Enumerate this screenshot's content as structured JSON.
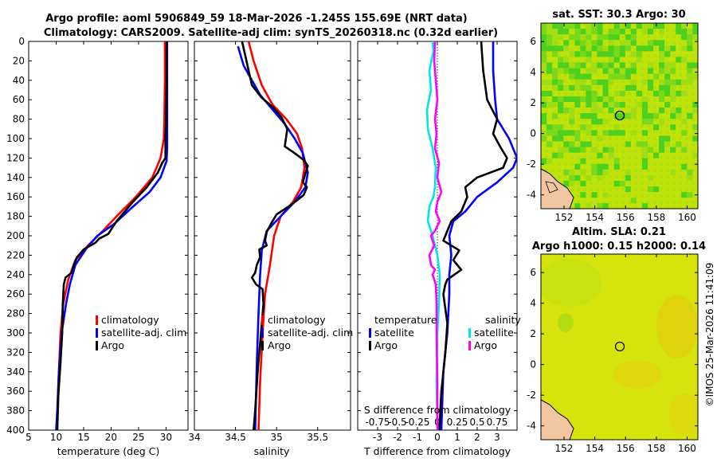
{
  "title": {
    "line1": "Argo profile: aoml 5906849_59 18-Mar-2026 -1.245S 155.69E (NRT data)",
    "line2": "Climatology: CARS2009. Satellite-adj clim: synTS_20260318.nc (0.32d earlier)"
  },
  "watermark": "©IMOS 25-Mar-2026 11:41:09",
  "depth_ticks": [
    "0",
    "20",
    "40",
    "60",
    "80",
    "100",
    "120",
    "140",
    "160",
    "180",
    "200",
    "220",
    "240",
    "260",
    "280",
    "300",
    "320",
    "340",
    "360",
    "380",
    "400"
  ],
  "colors": {
    "climatology": "#ff0000",
    "satellite": "#0000ff",
    "argo": "#000000",
    "s_sat": "#00e6e6",
    "s_argo": "#ff00ff"
  },
  "chart_data": [
    {
      "type": "line",
      "name": "temperature-profile",
      "xlabel": "temperature (deg C)",
      "ylabel": "depth",
      "xlim": [
        5,
        34
      ],
      "ylim": [
        400,
        0
      ],
      "xticks": [
        "5",
        "10",
        "15",
        "20",
        "25",
        "30"
      ],
      "legend": [
        "climatology",
        "satellite-adj. clim",
        "Argo"
      ],
      "series": [
        {
          "name": "climatology",
          "color": "#ff0000",
          "points": [
            [
              29.8,
              0
            ],
            [
              29.8,
              40
            ],
            [
              29.7,
              80
            ],
            [
              29.6,
              100
            ],
            [
              29.0,
              120
            ],
            [
              27.5,
              140
            ],
            [
              24.5,
              160
            ],
            [
              21.0,
              180
            ],
            [
              18.5,
              195
            ],
            [
              15.8,
              210
            ],
            [
              13.5,
              225
            ],
            [
              12.2,
              245
            ],
            [
              11.3,
              270
            ],
            [
              10.8,
              300
            ],
            [
              10.5,
              340
            ],
            [
              10.3,
              370
            ],
            [
              10.1,
              400
            ]
          ]
        },
        {
          "name": "satellite-adj. clim",
          "color": "#0000ff",
          "points": [
            [
              30.2,
              0
            ],
            [
              30.2,
              40
            ],
            [
              30.2,
              80
            ],
            [
              30.2,
              110
            ],
            [
              30.1,
              123
            ],
            [
              29.0,
              140
            ],
            [
              27.0,
              155
            ],
            [
              24.0,
              170
            ],
            [
              20.5,
              188
            ],
            [
              17.5,
              200
            ],
            [
              15.5,
              213
            ],
            [
              13.5,
              230
            ],
            [
              12.5,
              250
            ],
            [
              11.8,
              270
            ],
            [
              11.0,
              300
            ],
            [
              10.5,
              340
            ],
            [
              10.2,
              380
            ],
            [
              10.0,
              400
            ]
          ]
        },
        {
          "name": "Argo",
          "color": "#000000",
          "points": [
            [
              30.1,
              0
            ],
            [
              30.1,
              40
            ],
            [
              30.0,
              80
            ],
            [
              29.9,
              100
            ],
            [
              29.9,
              120
            ],
            [
              29.3,
              125
            ],
            [
              28.5,
              135
            ],
            [
              26.5,
              150
            ],
            [
              24.0,
              165
            ],
            [
              21.0,
              185
            ],
            [
              19.5,
              198
            ],
            [
              17.8,
              203
            ],
            [
              17.2,
              207
            ],
            [
              15.0,
              214
            ],
            [
              13.8,
              222
            ],
            [
              13.2,
              230
            ],
            [
              12.8,
              238
            ],
            [
              11.7,
              243
            ],
            [
              11.4,
              250
            ],
            [
              11.2,
              270
            ],
            [
              11.1,
              300
            ],
            [
              10.8,
              330
            ],
            [
              10.4,
              365
            ],
            [
              10.2,
              400
            ]
          ]
        }
      ]
    },
    {
      "type": "line",
      "name": "salinity-profile",
      "xlabel": "salinity",
      "ylabel": "depth",
      "xlim": [
        34,
        35.9
      ],
      "ylim": [
        400,
        0
      ],
      "xticks": [
        "34",
        "34.5",
        "35",
        "35.5"
      ],
      "legend": [
        "climatology",
        "satellite-adj. clim",
        "Argo"
      ],
      "series": [
        {
          "name": "climatology",
          "color": "#ff0000",
          "points": [
            [
              34.66,
              0
            ],
            [
              34.72,
              20
            ],
            [
              34.82,
              45
            ],
            [
              34.95,
              65
            ],
            [
              35.12,
              80
            ],
            [
              35.25,
              95
            ],
            [
              35.31,
              110
            ],
            [
              35.34,
              130
            ],
            [
              35.3,
              150
            ],
            [
              35.2,
              165
            ],
            [
              35.05,
              180
            ],
            [
              34.97,
              200
            ],
            [
              34.92,
              230
            ],
            [
              34.86,
              260
            ],
            [
              34.83,
              300
            ],
            [
              34.8,
              350
            ],
            [
              34.78,
              400
            ]
          ]
        },
        {
          "name": "satellite-adj. clim",
          "color": "#0000ff",
          "points": [
            [
              34.53,
              5
            ],
            [
              34.6,
              25
            ],
            [
              34.7,
              40
            ],
            [
              34.8,
              55
            ],
            [
              34.95,
              70
            ],
            [
              35.1,
              85
            ],
            [
              35.22,
              100
            ],
            [
              35.32,
              115
            ],
            [
              35.38,
              135
            ],
            [
              35.35,
              150
            ],
            [
              35.22,
              165
            ],
            [
              35.05,
              180
            ],
            [
              34.88,
              195
            ],
            [
              34.82,
              215
            ],
            [
              34.8,
              240
            ],
            [
              34.78,
              280
            ],
            [
              34.76,
              330
            ],
            [
              34.74,
              400
            ]
          ]
        },
        {
          "name": "Argo",
          "color": "#000000",
          "points": [
            [
              34.58,
              0
            ],
            [
              34.62,
              15
            ],
            [
              34.66,
              30
            ],
            [
              34.7,
              45
            ],
            [
              34.82,
              58
            ],
            [
              34.96,
              68
            ],
            [
              35.06,
              78
            ],
            [
              35.13,
              90
            ],
            [
              35.1,
              108
            ],
            [
              35.22,
              115
            ],
            [
              35.33,
              122
            ],
            [
              35.38,
              128
            ],
            [
              35.35,
              136
            ],
            [
              35.32,
              145
            ],
            [
              35.37,
              150
            ],
            [
              35.33,
              158
            ],
            [
              35.18,
              168
            ],
            [
              35.0,
              178
            ],
            [
              34.93,
              188
            ],
            [
              34.88,
              196
            ],
            [
              34.86,
              205
            ],
            [
              34.88,
              210
            ],
            [
              34.79,
              214
            ],
            [
              34.8,
              222
            ],
            [
              34.76,
              230
            ],
            [
              34.74,
              238
            ],
            [
              34.7,
              243
            ],
            [
              34.75,
              250
            ],
            [
              34.83,
              255
            ],
            [
              34.84,
              270
            ],
            [
              34.81,
              300
            ],
            [
              34.77,
              340
            ],
            [
              34.74,
              380
            ],
            [
              34.72,
              400
            ]
          ]
        }
      ]
    },
    {
      "type": "line",
      "name": "difference-profile",
      "xlabel": "T difference from climatology",
      "xlabel_top": "S difference from climatology",
      "xlim": [
        -4,
        4
      ],
      "ylim": [
        400,
        0
      ],
      "xticks": [
        "-3",
        "-2",
        "-1",
        "0",
        "1",
        "2",
        "3"
      ],
      "sticks": [
        "-0.75",
        "-0.5",
        "-0.25",
        "0",
        "0.25",
        "0.5",
        "0.75"
      ],
      "s_scale": 4,
      "legend_t_title": "temperature",
      "legend_s_title": "salinity",
      "legend_t": [
        "satellite",
        "Argo"
      ],
      "legend_s": [
        "satellite",
        "Argo"
      ],
      "series": [
        {
          "name": "T satellite - clim",
          "color": "#0000ff",
          "points": [
            [
              2.8,
              0
            ],
            [
              2.8,
              30
            ],
            [
              2.9,
              60
            ],
            [
              3.0,
              80
            ],
            [
              3.6,
              100
            ],
            [
              4.0,
              120
            ],
            [
              3.8,
              130
            ],
            [
              3.0,
              145
            ],
            [
              2.0,
              160
            ],
            [
              1.4,
              175
            ],
            [
              0.8,
              185
            ],
            [
              0.6,
              200
            ],
            [
              0.7,
              220
            ],
            [
              0.6,
              240
            ],
            [
              0.6,
              260
            ],
            [
              0.5,
              300
            ],
            [
              0.3,
              340
            ],
            [
              0.2,
              400
            ]
          ]
        },
        {
          "name": "T Argo - clim",
          "color": "#000000",
          "points": [
            [
              2.2,
              0
            ],
            [
              2.3,
              30
            ],
            [
              2.5,
              60
            ],
            [
              3.0,
              80
            ],
            [
              2.8,
              95
            ],
            [
              3.2,
              110
            ],
            [
              3.5,
              120
            ],
            [
              3.3,
              130
            ],
            [
              2.0,
              140
            ],
            [
              1.4,
              150
            ],
            [
              1.5,
              160
            ],
            [
              1.2,
              175
            ],
            [
              0.7,
              185
            ],
            [
              0.5,
              195
            ],
            [
              0.3,
              205
            ],
            [
              1.1,
              215
            ],
            [
              0.8,
              225
            ],
            [
              1.2,
              235
            ],
            [
              0.5,
              245
            ],
            [
              0.4,
              250
            ],
            [
              0.3,
              260
            ],
            [
              0.5,
              290
            ],
            [
              0.4,
              320
            ],
            [
              0.2,
              360
            ],
            [
              0.1,
              400
            ]
          ]
        },
        {
          "name": "S satellite - clim",
          "color": "#00e6e6",
          "scaled": true,
          "points": [
            [
              -0.06,
              0
            ],
            [
              -0.05,
              10
            ],
            [
              -0.1,
              30
            ],
            [
              -0.08,
              50
            ],
            [
              -0.13,
              70
            ],
            [
              -0.12,
              90
            ],
            [
              -0.06,
              110
            ],
            [
              -0.02,
              130
            ],
            [
              -0.03,
              150
            ],
            [
              -0.05,
              160
            ],
            [
              -0.1,
              170
            ],
            [
              -0.12,
              185
            ],
            [
              -0.06,
              200
            ],
            [
              0.0,
              220
            ],
            [
              0.03,
              240
            ],
            [
              0.02,
              270
            ],
            [
              0.0,
              300
            ],
            [
              -0.01,
              350
            ],
            [
              0.0,
              400
            ]
          ]
        },
        {
          "name": "S Argo - clim",
          "color": "#ff00ff",
          "scaled": true,
          "points": [
            [
              -0.03,
              0
            ],
            [
              -0.04,
              20
            ],
            [
              -0.02,
              40
            ],
            [
              0.0,
              60
            ],
            [
              -0.03,
              80
            ],
            [
              -0.01,
              95
            ],
            [
              -0.03,
              110
            ],
            [
              0.02,
              125
            ],
            [
              0.0,
              140
            ],
            [
              0.05,
              155
            ],
            [
              0.0,
              165
            ],
            [
              -0.02,
              175
            ],
            [
              0.03,
              185
            ],
            [
              -0.03,
              195
            ],
            [
              -0.08,
              200
            ],
            [
              -0.04,
              210
            ],
            [
              -0.1,
              220
            ],
            [
              -0.08,
              230
            ],
            [
              -0.03,
              235
            ],
            [
              -0.06,
              240
            ],
            [
              -0.02,
              250
            ],
            [
              -0.01,
              270
            ],
            [
              -0.01,
              300
            ],
            [
              0.0,
              350
            ],
            [
              0.0,
              400
            ]
          ]
        }
      ]
    },
    {
      "type": "heatmap",
      "name": "sst-map",
      "title": "sat. SST: 30.3 Argo: 30",
      "xlim": [
        150.5,
        160.7
      ],
      "ylim": [
        -4.9,
        7.2
      ],
      "xticks": [
        "152",
        "154",
        "156",
        "158",
        "160"
      ],
      "yticks": [
        "-4",
        "-2",
        "0",
        "2",
        "4",
        "6"
      ],
      "marker": {
        "lon": 155.69,
        "lat": -1.245
      }
    },
    {
      "type": "heatmap",
      "name": "sla-map",
      "title": "Altim. SLA: 0.21",
      "subtitle": "Argo h1000: 0.15 h2000: 0.14",
      "xlim": [
        150.5,
        160.7
      ],
      "ylim": [
        -4.9,
        7.2
      ],
      "xticks": [
        "152",
        "154",
        "156",
        "158",
        "160"
      ],
      "yticks": [
        "-4",
        "-2",
        "0",
        "2",
        "4",
        "6"
      ],
      "marker": {
        "lon": 155.69,
        "lat": -1.245
      }
    }
  ]
}
